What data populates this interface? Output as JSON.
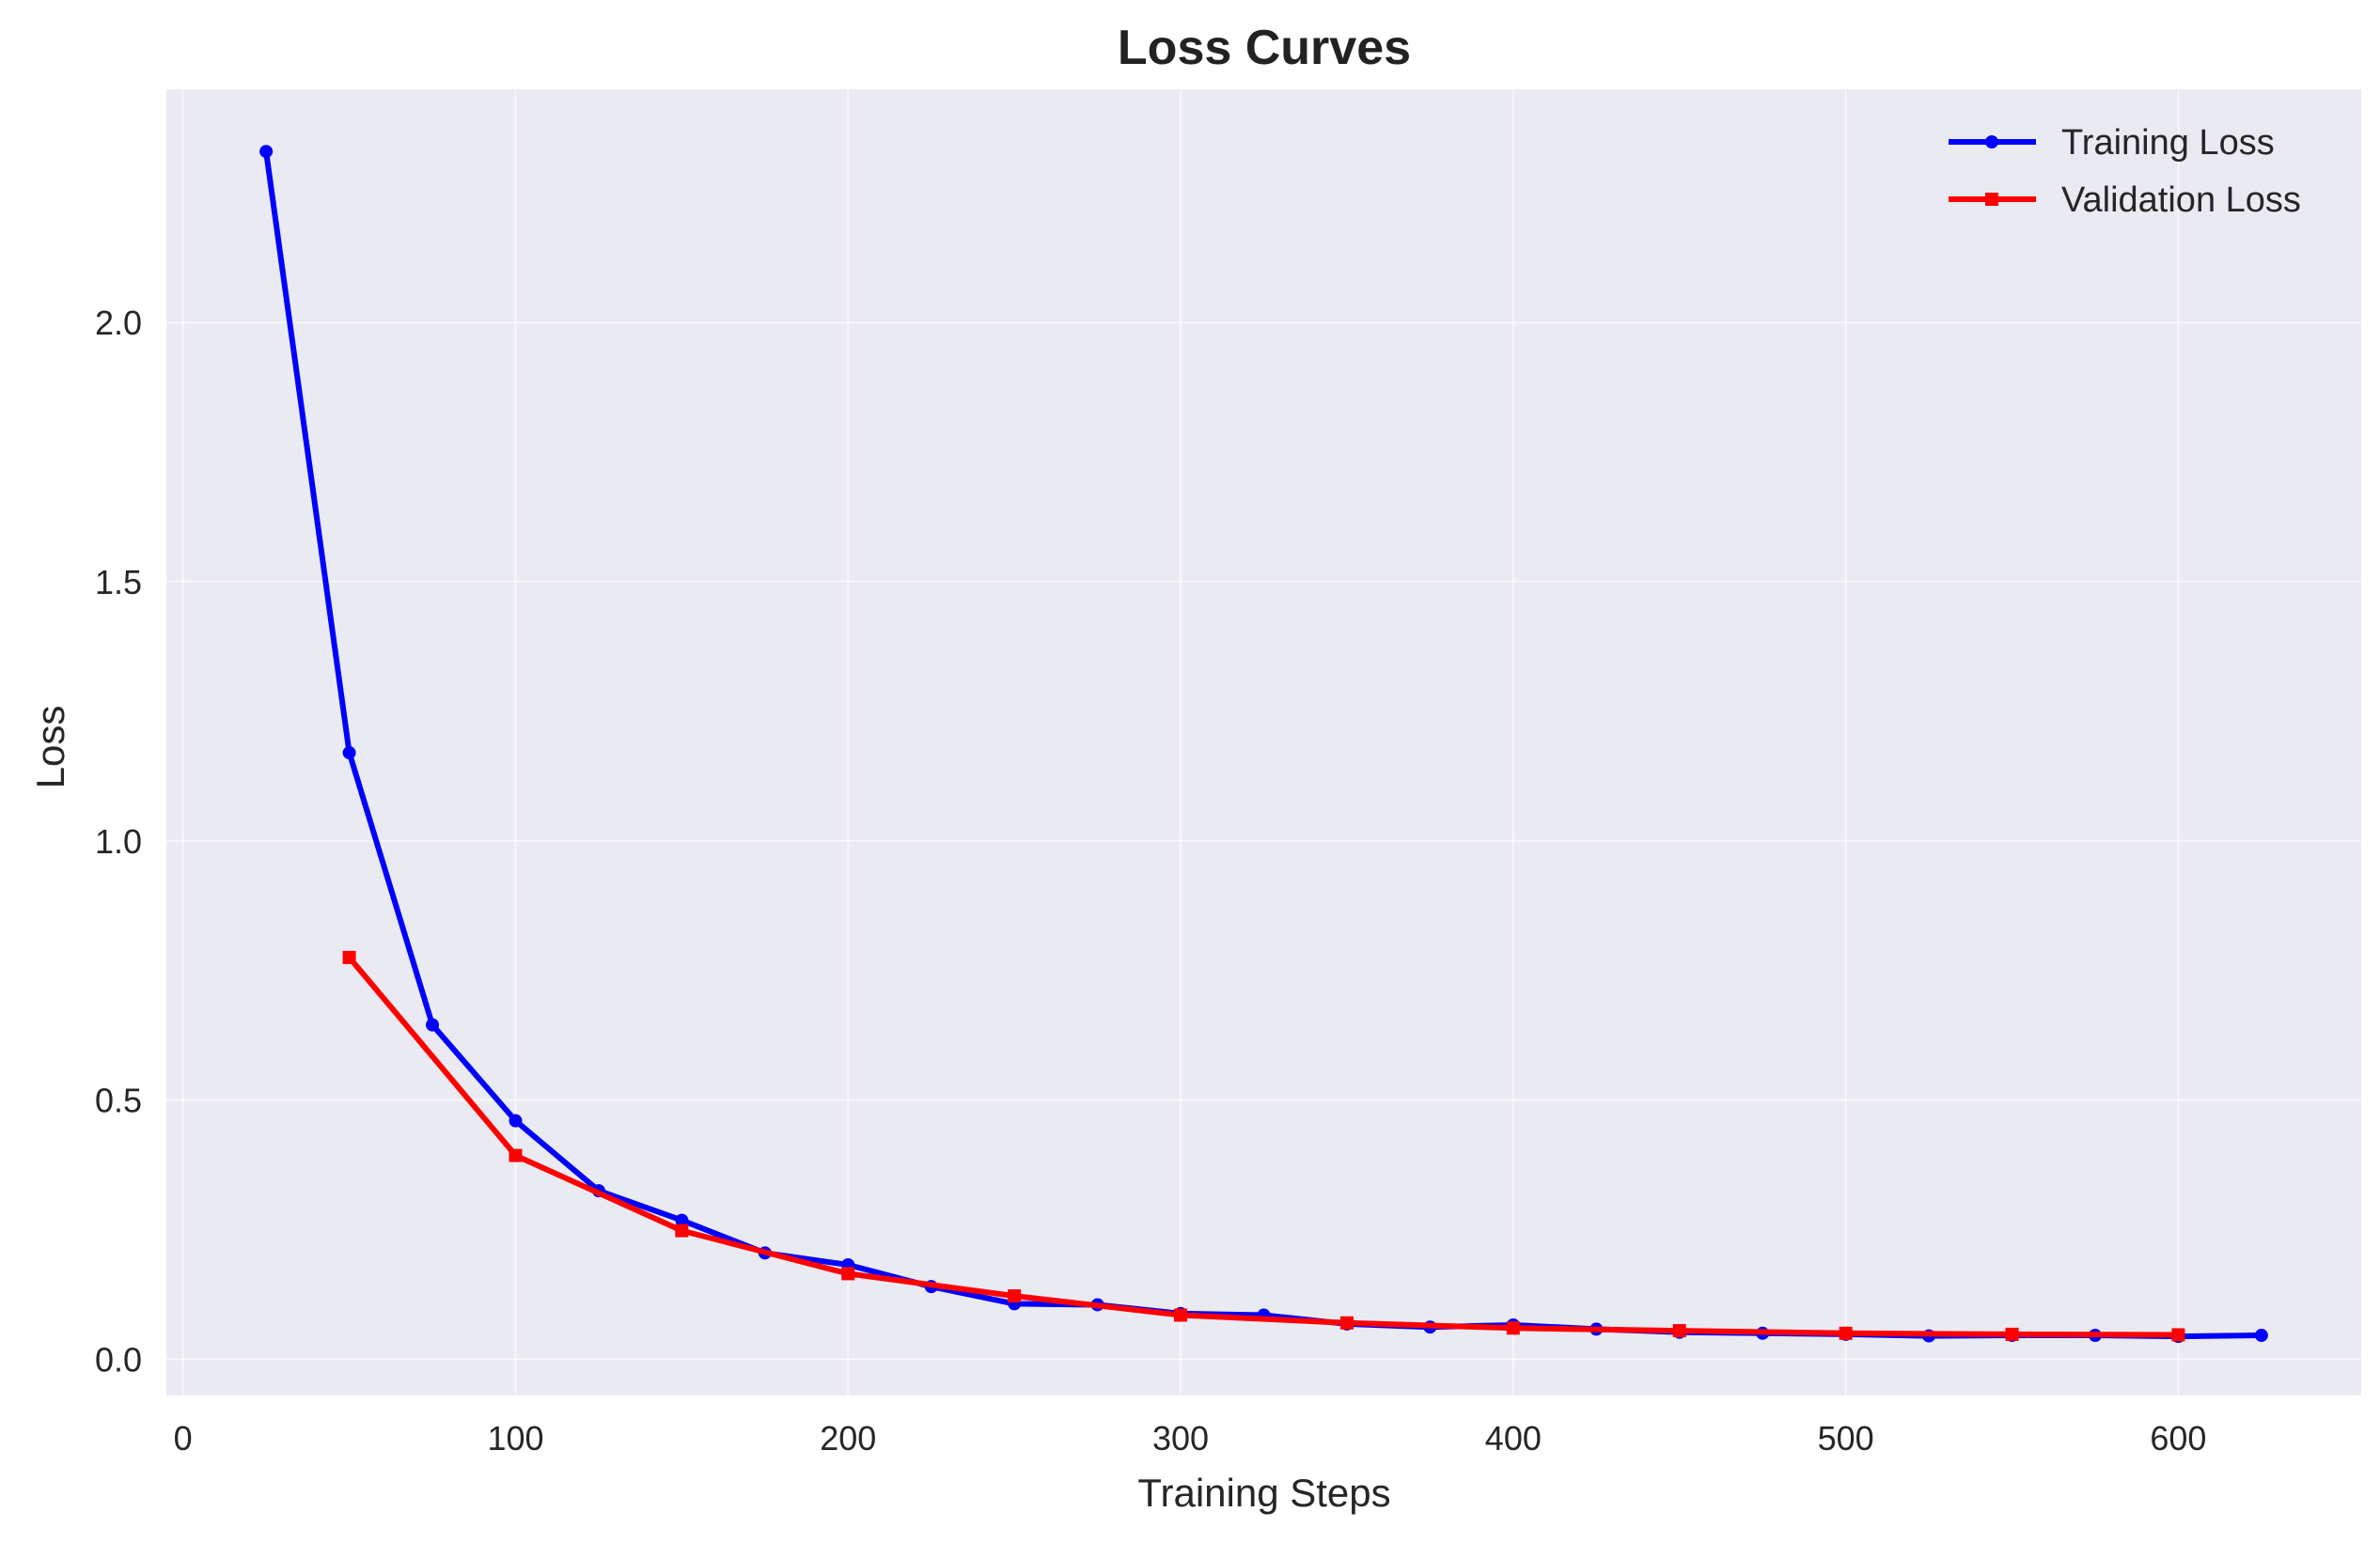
{
  "chart_data": {
    "type": "line",
    "title": "Loss Curves",
    "xlabel": "Training Steps",
    "ylabel": "Loss",
    "xlim": [
      -5,
      655
    ],
    "ylim": [
      -0.07,
      2.45
    ],
    "xticks": [
      0,
      100,
      200,
      300,
      400,
      500,
      600
    ],
    "yticks": [
      0.0,
      0.5,
      1.0,
      1.5,
      2.0
    ],
    "xtick_labels": [
      "0",
      "100",
      "200",
      "300",
      "400",
      "500",
      "600"
    ],
    "ytick_labels": [
      "0.0",
      "0.5",
      "1.0",
      "1.5",
      "2.0"
    ],
    "grid": true,
    "legend_position": "top-right",
    "background": "#EAEAF2",
    "series": [
      {
        "name": "Training Loss",
        "color": "#0000FF",
        "marker": "circle",
        "x": [
          25,
          50,
          75,
          100,
          125,
          150,
          175,
          200,
          225,
          250,
          275,
          300,
          325,
          350,
          375,
          400,
          425,
          450,
          475,
          500,
          525,
          550,
          575,
          600,
          625
        ],
        "y": [
          2.33,
          1.17,
          0.645,
          0.46,
          0.325,
          0.268,
          0.205,
          0.182,
          0.14,
          0.107,
          0.105,
          0.088,
          0.085,
          0.068,
          0.062,
          0.066,
          0.058,
          0.052,
          0.05,
          0.048,
          0.045,
          0.046,
          0.046,
          0.044,
          0.046
        ]
      },
      {
        "name": "Validation Loss",
        "color": "#FF0000",
        "marker": "square",
        "x": [
          50,
          100,
          150,
          200,
          250,
          300,
          350,
          400,
          450,
          500,
          550,
          600
        ],
        "y": [
          0.775,
          0.393,
          0.248,
          0.165,
          0.122,
          0.085,
          0.07,
          0.06,
          0.055,
          0.05,
          0.048,
          0.047
        ]
      }
    ]
  }
}
